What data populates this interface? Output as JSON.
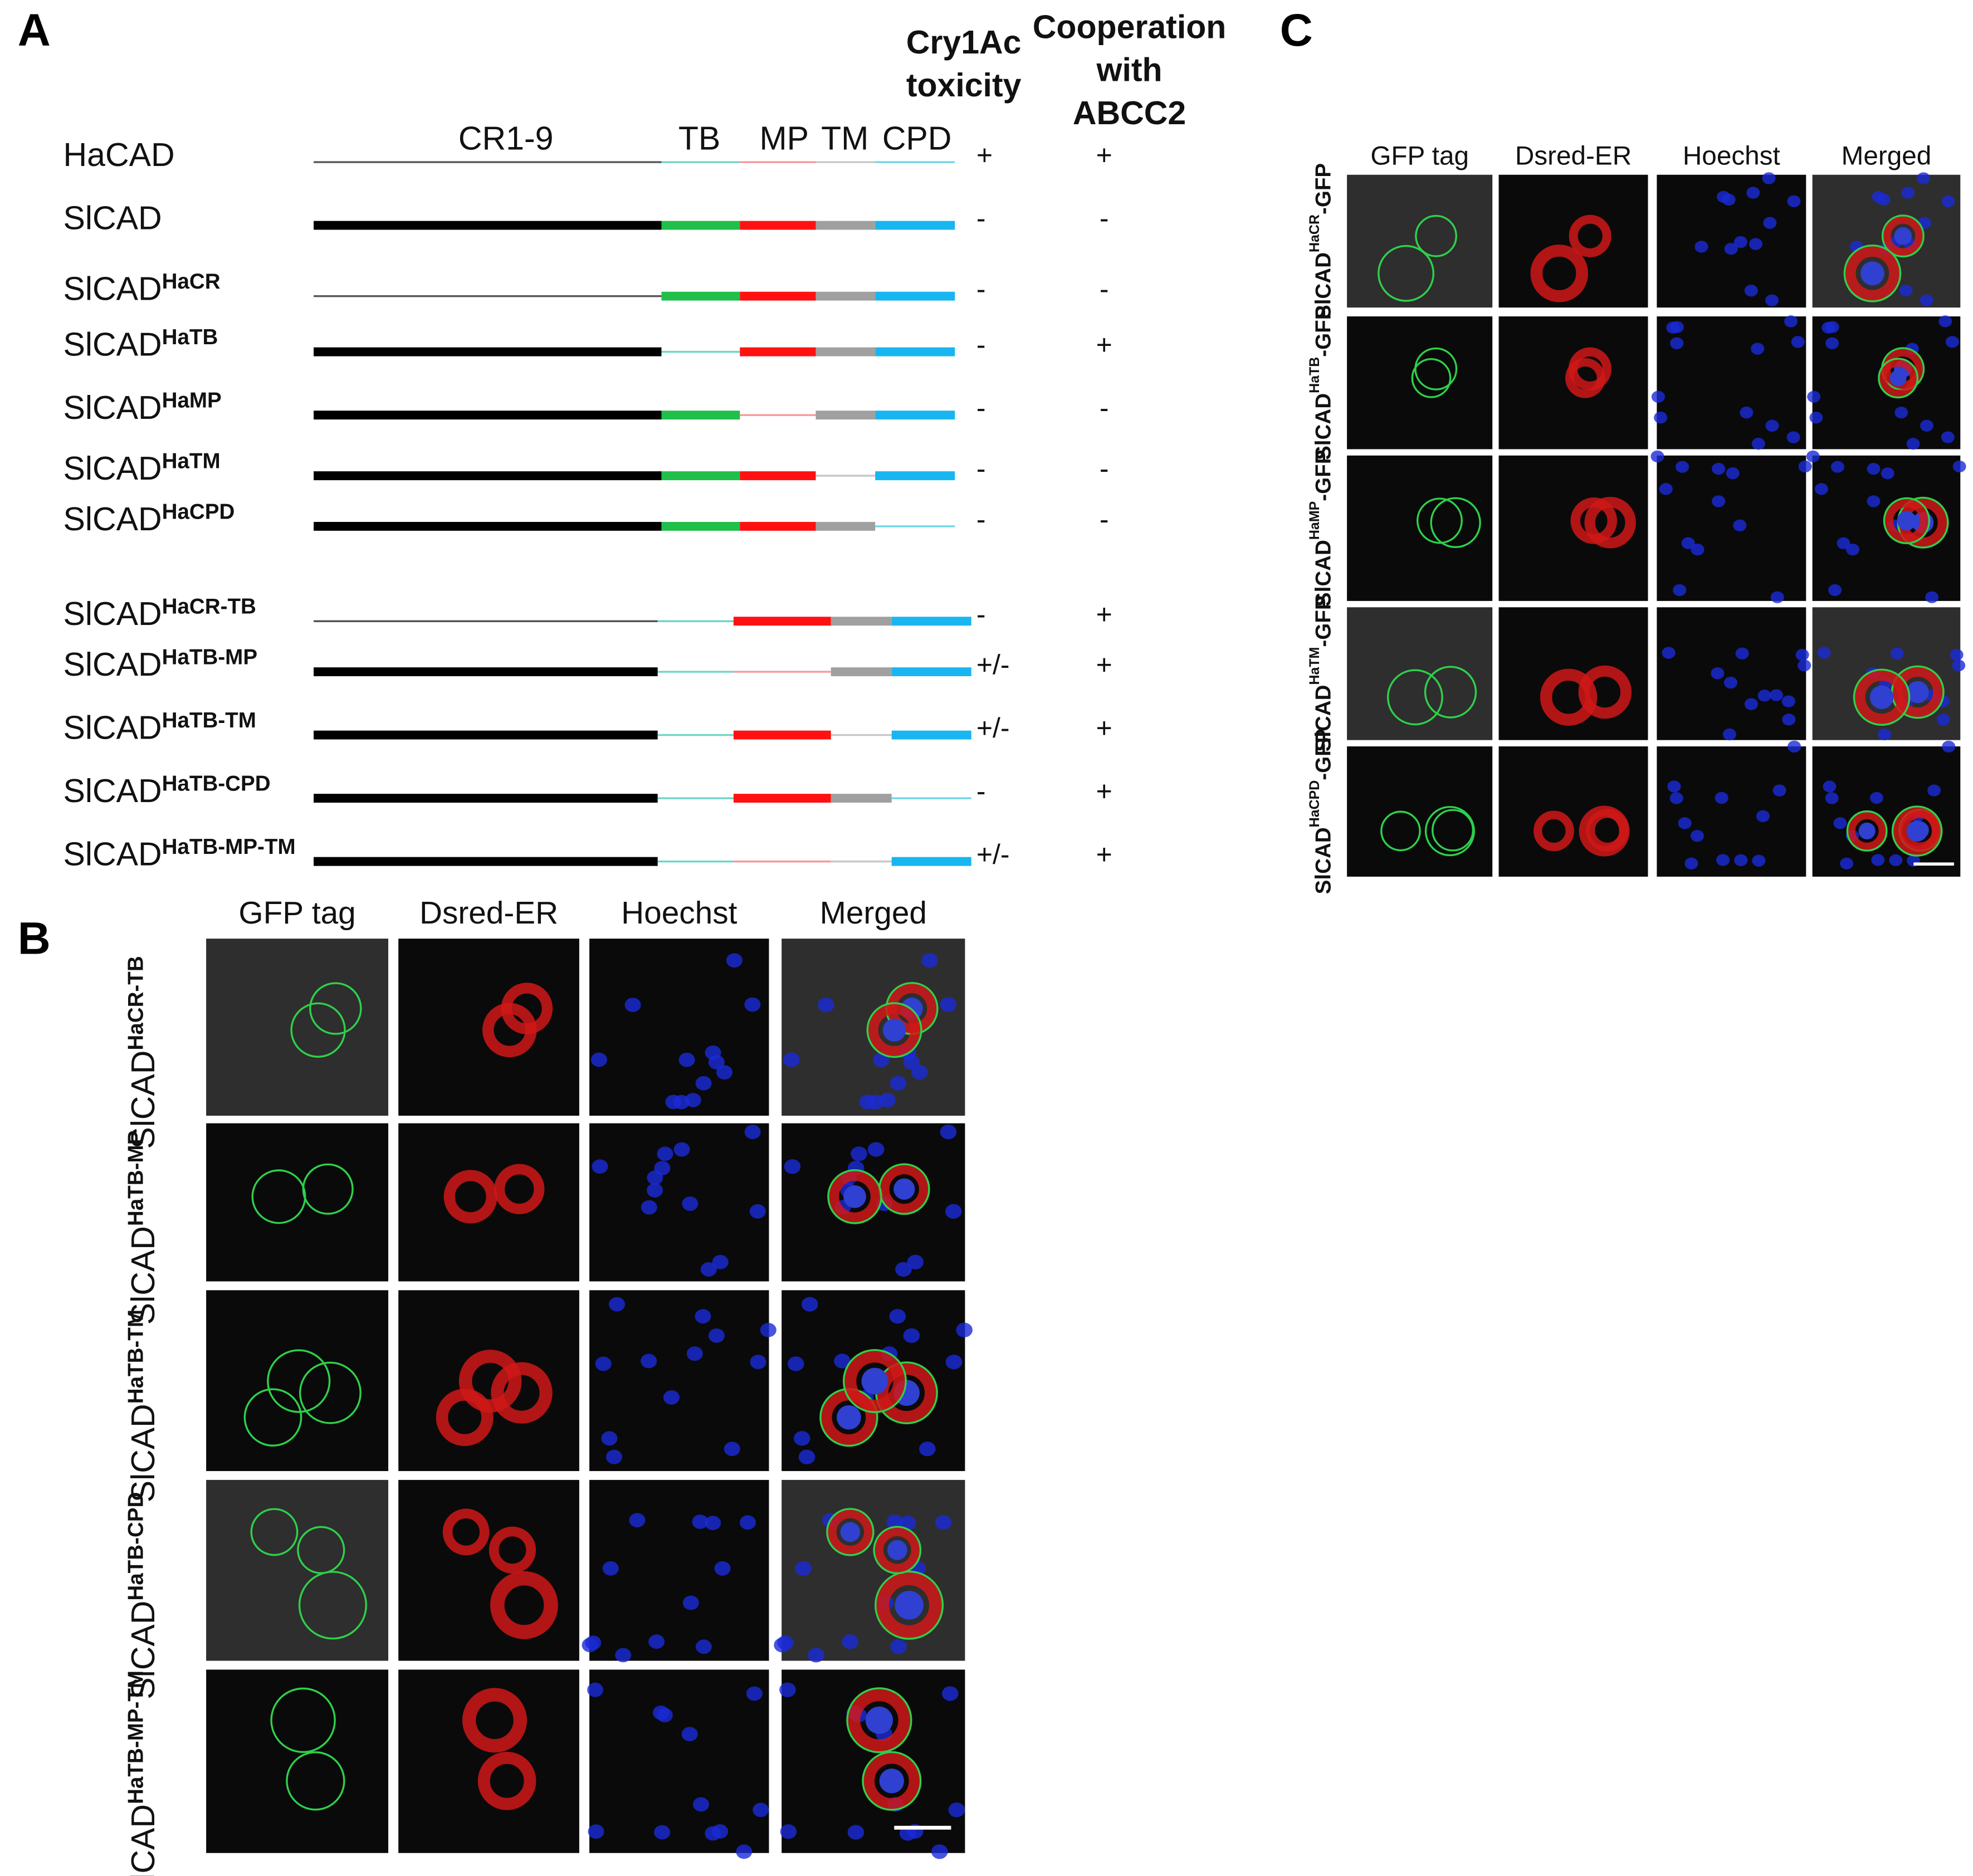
{
  "panel_a": {
    "label": "A",
    "toxicity_header": [
      "Cry1Ac",
      "toxicity"
    ],
    "cooperation_header": [
      "Cooperation",
      "with",
      "ABCC2"
    ],
    "domains": [
      "CR1-9",
      "TB",
      "MP",
      "TM",
      "CPD"
    ],
    "constructs": [
      {
        "name": "HaCAD",
        "toxicity": "+",
        "cooperation": "+"
      },
      {
        "name": "SlCAD",
        "toxicity": "-",
        "cooperation": "-"
      },
      {
        "name": "SlCAD",
        "sup": "HaCR",
        "toxicity": "-",
        "cooperation": "-"
      },
      {
        "name": "SlCAD",
        "sup": "HaTB",
        "toxicity": "-",
        "cooperation": "+"
      },
      {
        "name": "SlCAD",
        "sup": "HaMP",
        "toxicity": "-",
        "cooperation": "-"
      },
      {
        "name": "SlCAD",
        "sup": "HaTM",
        "toxicity": "-",
        "cooperation": "-"
      },
      {
        "name": "SlCAD",
        "sup": "HaCPD",
        "toxicity": "-",
        "cooperation": "-"
      },
      {
        "name": "SlCAD",
        "sup": "HaCR-TB",
        "toxicity": "-",
        "cooperation": "+"
      },
      {
        "name": "SlCAD",
        "sup": "HaTB-MP",
        "toxicity": "+/-",
        "cooperation": "+"
      },
      {
        "name": "SlCAD",
        "sup": "HaTB-TM",
        "toxicity": "+/-",
        "cooperation": "+"
      },
      {
        "name": "SlCAD",
        "sup": "HaTB-CPD",
        "toxicity": "-",
        "cooperation": "+"
      },
      {
        "name": "SlCAD",
        "sup": "HaTB-MP-TM",
        "toxicity": "+/-",
        "cooperation": "+"
      }
    ]
  },
  "panel_b": {
    "label": "B",
    "columns": [
      "GFP tag",
      "Dsred-ER",
      "Hoechst",
      "Merged"
    ],
    "rows": [
      {
        "name": "SlCAD",
        "sup": "HaCR-TB"
      },
      {
        "name": "SlCAD",
        "sup": "HaTB-MP"
      },
      {
        "name": "SlCAD",
        "sup": "HaTB-TM"
      },
      {
        "name": "SlCAD",
        "sup": "HaTB-CPD"
      },
      {
        "name": "SlCAD",
        "sup": "HaTB-MP-TM"
      }
    ]
  },
  "panel_c": {
    "label": "C",
    "columns": [
      "GFP tag",
      "Dsred-ER",
      "Hoechst",
      "Merged"
    ],
    "rows": [
      {
        "name": "SlCAD",
        "sup": "HaCR",
        "suffix": "-GFP"
      },
      {
        "name": "SlCAD",
        "sup": "HaTB",
        "suffix": "-GFP"
      },
      {
        "name": "SlCAD",
        "sup": "HaMP",
        "suffix": "-GFP"
      },
      {
        "name": "SlCAD",
        "sup": "HaTM",
        "suffix": "-GFP"
      },
      {
        "name": "SlCAD",
        "sup": "HaCPD",
        "suffix": "-GFP"
      }
    ]
  }
}
